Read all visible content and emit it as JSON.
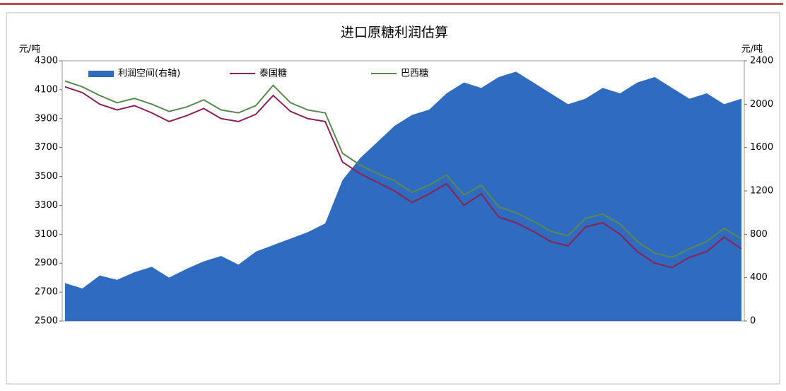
{
  "chart_data": {
    "type": "line",
    "title": "进口原糖利润估算",
    "y_label": "元/吨",
    "y2_label": "元/吨",
    "categories": [
      null,
      null,
      null,
      null,
      null,
      null,
      null,
      null,
      null,
      null,
      null,
      null,
      null,
      null,
      null,
      null,
      null,
      null,
      null,
      null,
      null,
      null,
      null,
      null,
      null,
      null,
      null,
      null,
      null,
      null,
      null,
      null,
      null,
      null,
      null,
      null,
      null,
      null,
      null,
      null
    ],
    "series": [
      {
        "name": "利润空间(右轴)",
        "color": "#2f6bbf",
        "axis": "y2",
        "kind": "area",
        "values": [
          350,
          300,
          420,
          380,
          450,
          500,
          400,
          480,
          550,
          600,
          520,
          640,
          700,
          760,
          820,
          900,
          1300,
          1500,
          1650,
          1800,
          1900,
          1950,
          2100,
          2200,
          2150,
          2250,
          2300,
          2200,
          2100,
          2000,
          2050,
          2150,
          2100,
          2200,
          2250,
          2150,
          2050,
          2100,
          2000,
          2050
        ]
      },
      {
        "name": "泰国糖",
        "color": "#8b2252",
        "values": [
          4120,
          4080,
          4000,
          3960,
          3990,
          3940,
          3880,
          3920,
          3970,
          3900,
          3880,
          3930,
          4060,
          3950,
          3900,
          3880,
          3600,
          3520,
          3460,
          3400,
          3320,
          3380,
          3450,
          3300,
          3380,
          3220,
          3180,
          3120,
          3050,
          3020,
          3150,
          3180,
          3100,
          2980,
          2900,
          2870,
          2940,
          2980,
          3080,
          3000
        ]
      },
      {
        "name": "巴西糖",
        "color": "#5a8a50",
        "values": [
          4160,
          4120,
          4060,
          4010,
          4040,
          4000,
          3950,
          3980,
          4030,
          3960,
          3940,
          3990,
          4130,
          4010,
          3960,
          3940,
          3660,
          3580,
          3520,
          3470,
          3390,
          3440,
          3510,
          3370,
          3440,
          3290,
          3250,
          3190,
          3120,
          3090,
          3210,
          3240,
          3170,
          3050,
          2970,
          2940,
          3000,
          3050,
          3140,
          3070
        ]
      }
    ],
    "ylim": [
      2500,
      4300
    ],
    "yticks": [
      2500,
      2700,
      2900,
      3100,
      3300,
      3500,
      3700,
      3900,
      4100,
      4300
    ],
    "y2lim": [
      0,
      2400
    ],
    "y2ticks": [
      0,
      400,
      800,
      1200,
      1600,
      2000,
      2400
    ]
  }
}
